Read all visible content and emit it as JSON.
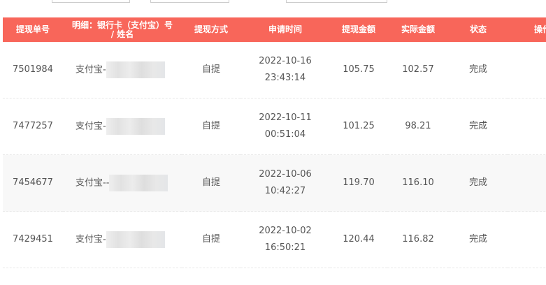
{
  "header": [
    "提现单号",
    "明细：银行卡（支付宝）号 / 姓名",
    "提现方式",
    "申请时间",
    "提现金额",
    "实际金额",
    "状态",
    "操作"
  ],
  "rows": [
    {
      "id": "7501984",
      "account": "支付宝-",
      "method": "自提",
      "date": "2022-10-16",
      "time": "23:43:14",
      "amount": "105.75",
      "actual": "102.57",
      "status": "完成"
    },
    {
      "id": "7477257",
      "account": "支付宝-",
      "method": "自提",
      "date": "2022-10-11",
      "time": "00:51:04",
      "amount": "101.25",
      "actual": "98.21",
      "status": "完成"
    },
    {
      "id": "7454677",
      "account": "支付宝--",
      "method": "自提",
      "date": "2022-10-06",
      "time": "10:42:27",
      "amount": "119.70",
      "actual": "116.10",
      "status": "完成"
    },
    {
      "id": "7429451",
      "account": "支付宝-",
      "method": "自提",
      "date": "2022-10-02",
      "time": "16:50:21",
      "amount": "120.44",
      "actual": "116.82",
      "status": "完成"
    }
  ],
  "colors": {
    "header_bg": "#f8665a"
  }
}
